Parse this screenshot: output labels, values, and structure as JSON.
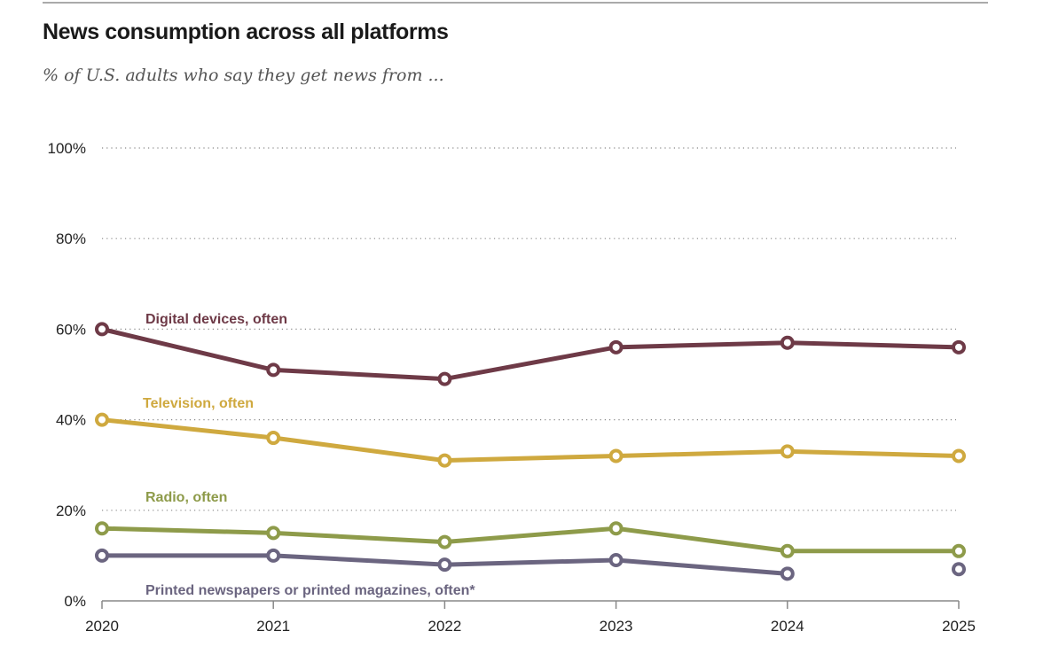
{
  "chart_data": {
    "type": "line",
    "title": "News consumption across all platforms",
    "subtitle": "% of U.S. adults who say they get news from ...",
    "xlabel": "",
    "ylabel": "",
    "x": [
      "2020",
      "2021",
      "2022",
      "2023",
      "2024",
      "2025"
    ],
    "ylim": [
      0,
      100
    ],
    "yticks": [
      0,
      20,
      40,
      60,
      80,
      100
    ],
    "ytick_labels": [
      "0%",
      "20%",
      "40%",
      "60%",
      "80%",
      "100%"
    ],
    "grid": true,
    "series": [
      {
        "name": "Digital devices, often",
        "color": "#6e3a47",
        "values": [
          60,
          51,
          49,
          56,
          57,
          56
        ],
        "connected": [
          true,
          true,
          true,
          true,
          true
        ]
      },
      {
        "name": "Television, often",
        "color": "#cfa93f",
        "values": [
          40,
          36,
          31,
          32,
          33,
          32
        ],
        "connected": [
          true,
          true,
          true,
          true,
          true
        ]
      },
      {
        "name": "Radio, often",
        "color": "#8e9b4a",
        "values": [
          16,
          15,
          13,
          16,
          11,
          11
        ],
        "connected": [
          true,
          true,
          true,
          true,
          true
        ]
      },
      {
        "name": "Printed newspapers or printed magazines, often*",
        "color": "#6b6580",
        "values": [
          10,
          10,
          8,
          9,
          6,
          7
        ],
        "connected": [
          true,
          true,
          true,
          true,
          false
        ]
      }
    ]
  }
}
